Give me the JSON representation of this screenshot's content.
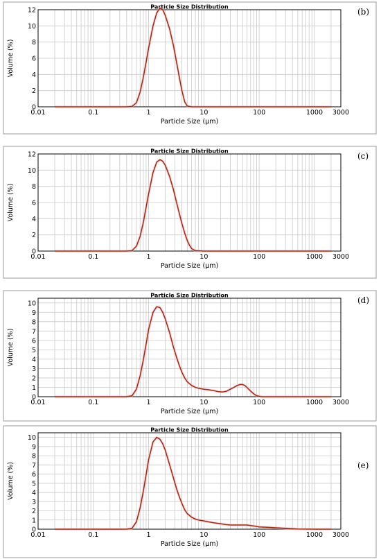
{
  "chart_data": [
    {
      "type": "line",
      "panel_label": "(b)",
      "title": "Particle Size Distribution",
      "xlabel": "Particle Size (µm)",
      "ylabel": "Volume (%)",
      "xscale": "log",
      "xlim": [
        0.01,
        3000
      ],
      "ylim": [
        0,
        12
      ],
      "xticks": [
        "0.01",
        "0.1",
        "1",
        "10",
        "100",
        "1000",
        "3000"
      ],
      "xtick_values": [
        0.01,
        0.1,
        1,
        10,
        100,
        1000,
        3000
      ],
      "yticks": [
        0,
        2,
        4,
        6,
        8,
        10,
        12
      ],
      "grid": true,
      "series": [
        {
          "color": "#a52a0a",
          "x": [
            0.02,
            0.4,
            0.5,
            0.6,
            0.7,
            0.8,
            0.9,
            1.0,
            1.2,
            1.4,
            1.6,
            1.8,
            2.0,
            2.4,
            2.8,
            3.2,
            3.6,
            4.0,
            4.5,
            5.0,
            6.0,
            10,
            100,
            1000,
            2000
          ],
          "y": [
            0,
            0,
            0.05,
            0.5,
            1.8,
            3.6,
            5.5,
            7.3,
            10.0,
            11.6,
            12.2,
            12.0,
            11.3,
            9.6,
            7.6,
            5.5,
            3.6,
            2.0,
            0.6,
            0.1,
            0,
            0,
            0,
            0,
            0
          ]
        }
      ]
    },
    {
      "type": "line",
      "panel_label": "(c)",
      "title": "Particle Size Distribution",
      "xlabel": "Particle Size (µm)",
      "ylabel": "Volume (%)",
      "xscale": "log",
      "xlim": [
        0.01,
        3000
      ],
      "ylim": [
        0,
        12
      ],
      "xticks": [
        "0.01",
        "0.1",
        "1",
        "10",
        "100",
        "1000",
        "3000"
      ],
      "xtick_values": [
        0.01,
        0.1,
        1,
        10,
        100,
        1000,
        3000
      ],
      "yticks": [
        0,
        2,
        4,
        6,
        8,
        10,
        12
      ],
      "grid": true,
      "series": [
        {
          "color": "#a52a0a",
          "x": [
            0.02,
            0.4,
            0.5,
            0.6,
            0.7,
            0.8,
            0.9,
            1.0,
            1.2,
            1.4,
            1.6,
            1.8,
            2.0,
            2.4,
            2.8,
            3.2,
            3.6,
            4.0,
            4.5,
            5.0,
            5.5,
            6.0,
            7.0,
            10,
            100,
            1000,
            2000
          ],
          "y": [
            0,
            0,
            0.05,
            0.6,
            1.8,
            3.5,
            5.4,
            7.1,
            9.7,
            11.0,
            11.3,
            11.1,
            10.6,
            9.2,
            7.6,
            6.0,
            4.6,
            3.4,
            2.2,
            1.3,
            0.7,
            0.3,
            0.05,
            0,
            0,
            0,
            0
          ]
        }
      ]
    },
    {
      "type": "line",
      "panel_label": "(d)",
      "title": "Particle Size Distribution",
      "xlabel": "Particle Size (µm)",
      "ylabel": "Volume (%)",
      "xscale": "log",
      "xlim": [
        0.01,
        3000
      ],
      "ylim": [
        0,
        10.5
      ],
      "xticks": [
        "0.01",
        "0.1",
        "1",
        "10",
        "100",
        "1000",
        "3000"
      ],
      "xtick_values": [
        0.01,
        0.1,
        1,
        10,
        100,
        1000,
        3000
      ],
      "yticks": [
        0,
        1,
        2,
        3,
        4,
        5,
        6,
        7,
        8,
        9,
        10
      ],
      "grid": true,
      "series": [
        {
          "color": "#a52a0a",
          "x": [
            0.02,
            0.4,
            0.5,
            0.6,
            0.7,
            0.8,
            0.9,
            1.0,
            1.2,
            1.4,
            1.6,
            1.8,
            2.0,
            2.4,
            2.8,
            3.2,
            3.6,
            4.0,
            4.5,
            5.0,
            6.0,
            7.0,
            8.0,
            10,
            12,
            15,
            18,
            22,
            26,
            30,
            35,
            40,
            45,
            50,
            55,
            60,
            70,
            80,
            90,
            100,
            110,
            1000,
            2000
          ],
          "y": [
            0,
            0,
            0.1,
            0.8,
            2.2,
            3.9,
            5.6,
            7.2,
            9.0,
            9.6,
            9.5,
            9.0,
            8.3,
            6.8,
            5.3,
            4.2,
            3.3,
            2.6,
            2.0,
            1.6,
            1.2,
            1.0,
            0.9,
            0.8,
            0.75,
            0.65,
            0.55,
            0.5,
            0.6,
            0.8,
            1.0,
            1.2,
            1.3,
            1.3,
            1.2,
            1.0,
            0.6,
            0.3,
            0.1,
            0.05,
            0,
            0,
            0
          ]
        }
      ]
    },
    {
      "type": "line",
      "panel_label": "(e)",
      "title": "Particle Size Distribution",
      "xlabel": "Particle Size (µm)",
      "ylabel": "Volume (%)",
      "xscale": "log",
      "xlim": [
        0.01,
        3000
      ],
      "ylim": [
        0,
        10.5
      ],
      "xticks": [
        "0.01",
        "0.1",
        "1",
        "10",
        "100",
        "1000",
        "3000"
      ],
      "xtick_values": [
        0.01,
        0.1,
        1,
        10,
        100,
        1000,
        3000
      ],
      "yticks": [
        0,
        1,
        2,
        3,
        4,
        5,
        6,
        7,
        8,
        9,
        10
      ],
      "grid": true,
      "series": [
        {
          "color": "#a52a0a",
          "x": [
            0.02,
            0.4,
            0.5,
            0.6,
            0.7,
            0.8,
            0.9,
            1.0,
            1.2,
            1.4,
            1.6,
            1.8,
            2.0,
            2.4,
            2.8,
            3.2,
            3.6,
            4.0,
            4.5,
            5.0,
            6.0,
            7.0,
            8.0,
            10,
            12,
            15,
            20,
            25,
            30,
            40,
            50,
            60,
            70,
            80,
            100,
            150,
            200,
            300,
            400,
            500,
            1000,
            2000
          ],
          "y": [
            0,
            0,
            0.1,
            0.8,
            2.3,
            4.1,
            5.9,
            7.6,
            9.5,
            10.0,
            9.8,
            9.3,
            8.6,
            7.0,
            5.6,
            4.4,
            3.5,
            2.8,
            2.1,
            1.7,
            1.3,
            1.1,
            1.0,
            0.9,
            0.8,
            0.7,
            0.6,
            0.5,
            0.45,
            0.45,
            0.45,
            0.45,
            0.4,
            0.35,
            0.25,
            0.2,
            0.15,
            0.1,
            0.05,
            0.02,
            0,
            0
          ]
        }
      ]
    }
  ]
}
